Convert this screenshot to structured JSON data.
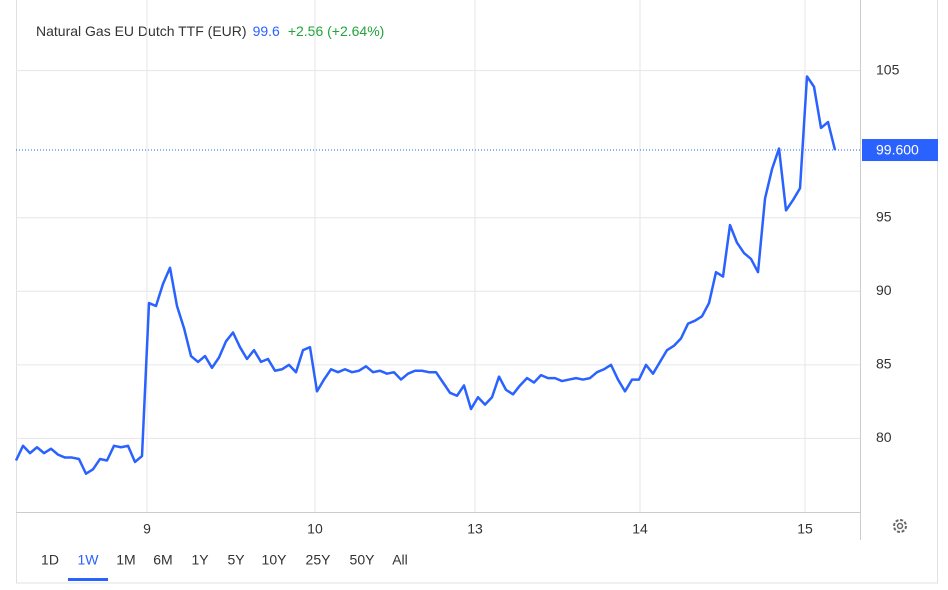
{
  "chart_data": {
    "type": "line",
    "title": "Natural Gas EU Dutch TTF (EUR)",
    "price": 99.6,
    "change": "+2.56 (+2.64%)",
    "price_tag": "99.600",
    "series": [
      {
        "color": "#2962ff",
        "values": [
          78.5,
          79.5,
          79.0,
          79.4,
          79.0,
          79.3,
          78.9,
          78.7,
          78.7,
          78.6,
          77.6,
          77.9,
          78.6,
          78.5,
          79.5,
          79.4,
          79.5,
          78.4,
          78.8,
          89.2,
          89.0,
          90.5,
          91.6,
          89.0,
          87.5,
          85.6,
          85.2,
          85.6,
          84.8,
          85.5,
          86.6,
          87.2,
          86.2,
          85.4,
          86.0,
          85.2,
          85.4,
          84.6,
          84.7,
          85.0,
          84.5,
          86.0,
          86.2,
          83.2,
          84.0,
          84.7,
          84.5,
          84.7,
          84.5,
          84.6,
          84.9,
          84.5,
          84.6,
          84.4,
          84.5,
          84.0,
          84.4,
          84.6,
          84.6,
          84.5,
          84.5,
          83.8,
          83.1,
          82.9,
          83.6,
          82.0,
          82.8,
          82.3,
          82.8,
          84.2,
          83.3,
          83.0,
          83.6,
          84.1,
          83.8,
          84.3,
          84.1,
          84.1,
          83.9,
          84.0,
          84.1,
          84.0,
          84.1,
          84.5,
          84.7,
          85.0,
          84.0,
          83.2,
          84.0,
          84.0,
          85.0,
          84.4,
          85.2,
          86.0,
          86.3,
          86.8,
          87.8,
          88.0,
          88.3,
          89.2,
          91.3,
          91.0,
          94.5,
          93.3,
          92.6,
          92.2,
          91.3,
          96.3,
          98.3,
          99.7,
          95.5,
          96.2,
          97.0,
          104.6,
          103.9,
          101.1,
          101.5,
          99.6
        ]
      }
    ],
    "xlim": [
      0,
      120.57
    ],
    "xticks": [
      {
        "value": 18.71,
        "label": "9"
      },
      {
        "value": 42.71,
        "label": "10"
      },
      {
        "value": 65.57,
        "label": "13"
      },
      {
        "value": 89.14,
        "label": "14"
      },
      {
        "value": 112.71,
        "label": "15"
      }
    ],
    "ylim": [
      75,
      110
    ],
    "yticks": [
      80,
      85,
      90,
      95,
      105
    ],
    "grid": true,
    "ranges": [
      "1D",
      "1W",
      "1M",
      "6M",
      "1Y",
      "5Y",
      "10Y",
      "25Y",
      "50Y",
      "All"
    ],
    "selected_range": "1W"
  }
}
